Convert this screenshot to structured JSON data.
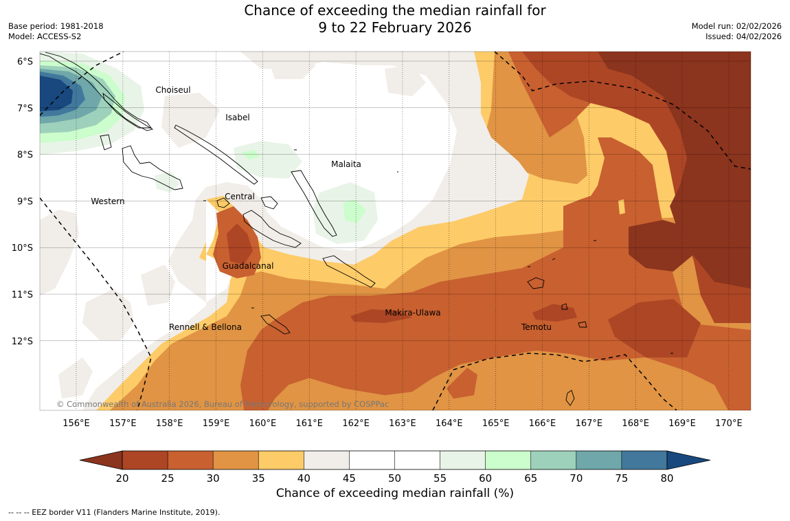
{
  "title_line1": "Chance of exceeding the median rainfall for",
  "title_line2": "9 to 22 February 2026",
  "base_period": "Base period: 1981-2018",
  "model": "Model: ACCESS-S2",
  "model_run": "Model run: 02/02/2026",
  "issued": "Issued: 04/02/2026",
  "copyright": "© Commonwealth of Australia 2026, Bureau of Meteorology, supported by COSPPac",
  "colorbar_label": "Chance of exceeding median rainfall (%)",
  "footnote": "--  --  -- EEZ border V11 (Flanders Marine Institute, 2019).",
  "lat_labels": [
    "6°S",
    "7°S",
    "8°S",
    "9°S",
    "10°S",
    "11°S",
    "12°S"
  ],
  "lon_labels": [
    "156°E",
    "157°E",
    "158°E",
    "159°E",
    "160°E",
    "161°E",
    "162°E",
    "163°E",
    "164°E",
    "165°E",
    "166°E",
    "167°E",
    "168°E",
    "169°E",
    "170°E"
  ],
  "province_labels": [
    "Choiseul",
    "Isabel",
    "Malaita",
    "Western",
    "Central",
    "Guadalcanal",
    "Makira-Ulawa",
    "Rennell & Bellona",
    "Temotu"
  ],
  "colorbar_ticks": [
    "20",
    "25",
    "30",
    "35",
    "40",
    "45",
    "50",
    "55",
    "60",
    "65",
    "70",
    "75",
    "80"
  ],
  "colors": {
    "lt20": "#8b341e",
    "b20_25": "#ad4625",
    "b25_30": "#c86030",
    "b30_35": "#e09444",
    "b35_40": "#fdcb68",
    "b40_45": "#f1ede8",
    "b45_55": "#ffffff",
    "b55_60": "#e8f4e7",
    "b60_65": "#ccfdcc",
    "b65_70": "#9dd1bb",
    "b70_75": "#6fa7aa",
    "b75_80": "#41789c",
    "gt80": "#18487e"
  }
}
